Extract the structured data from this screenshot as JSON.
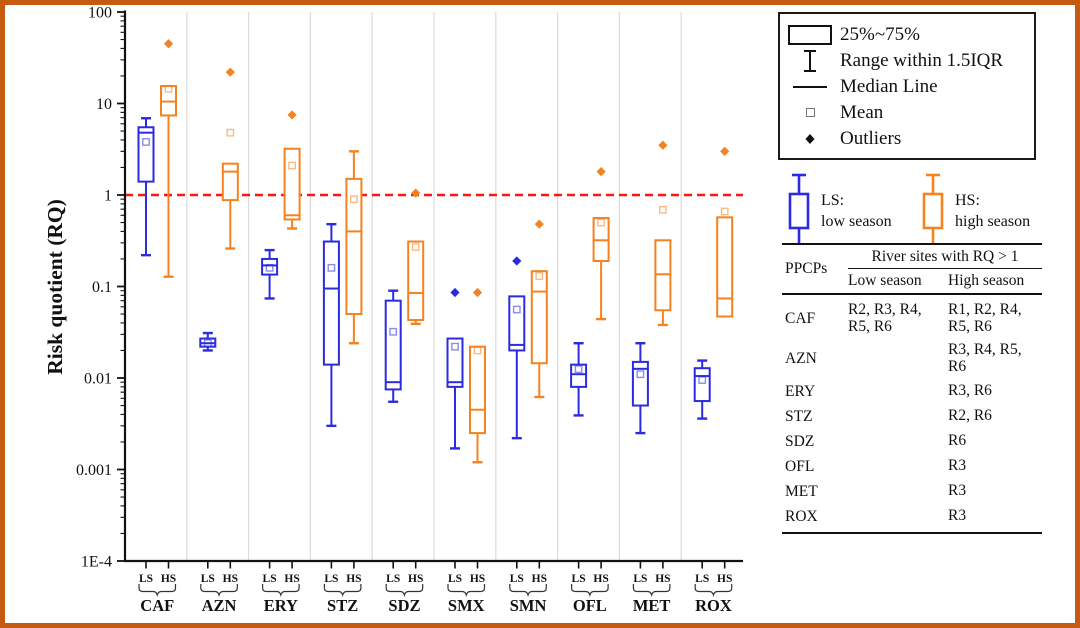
{
  "frame": {
    "border_color": "#C55A11"
  },
  "chart_data": {
    "type": "boxplot",
    "title": "",
    "ylabel": "Risk quotient (RQ)",
    "xlabel": "",
    "yscale": "log",
    "ylim": [
      0.0001,
      100
    ],
    "grid": "vertical-group-separators",
    "yticks": [
      {
        "v": 100,
        "label": "100"
      },
      {
        "v": 10,
        "label": "10"
      },
      {
        "v": 1,
        "label": "1"
      },
      {
        "v": 0.1,
        "label": "0.1"
      },
      {
        "v": 0.01,
        "label": "0.01"
      },
      {
        "v": 0.001,
        "label": "0.001"
      },
      {
        "v": 0.0001,
        "label": "1E-4"
      }
    ],
    "reference_line": {
      "value": 1,
      "color": "#FF1414",
      "style": "dashed"
    },
    "categories": [
      "CAF",
      "AZN",
      "ERY",
      "STZ",
      "SDZ",
      "SMX",
      "SMN",
      "OFL",
      "MET",
      "ROX"
    ],
    "series": [
      {
        "name": "LS",
        "label": "low season",
        "color": "#2B2BDF",
        "boxes": [
          {
            "whisker_low": 0.22,
            "q1": 1.4,
            "median": 4.8,
            "q3": 5.5,
            "whisker_high": 6.9,
            "mean": 3.8,
            "outliers": []
          },
          {
            "whisker_low": 0.02,
            "q1": 0.022,
            "median": 0.024,
            "q3": 0.027,
            "whisker_high": 0.031,
            "mean": 0.024,
            "outliers": []
          },
          {
            "whisker_low": 0.074,
            "q1": 0.135,
            "median": 0.17,
            "q3": 0.2,
            "whisker_high": 0.25,
            "mean": 0.16,
            "outliers": []
          },
          {
            "whisker_low": 0.003,
            "q1": 0.014,
            "median": 0.095,
            "q3": 0.31,
            "whisker_high": 0.48,
            "mean": 0.16,
            "outliers": []
          },
          {
            "whisker_low": 0.0055,
            "q1": 0.0075,
            "median": 0.009,
            "q3": 0.07,
            "whisker_high": 0.09,
            "mean": 0.032,
            "outliers": []
          },
          {
            "whisker_low": 0.0017,
            "q1": 0.008,
            "median": 0.009,
            "q3": 0.027,
            "whisker_high": 0.027,
            "mean": 0.022,
            "outliers": [
              0.086
            ]
          },
          {
            "whisker_low": 0.0022,
            "q1": 0.02,
            "median": 0.023,
            "q3": 0.078,
            "whisker_high": 0.078,
            "mean": 0.056,
            "outliers": [
              0.19
            ]
          },
          {
            "whisker_low": 0.0039,
            "q1": 0.008,
            "median": 0.011,
            "q3": 0.014,
            "whisker_high": 0.024,
            "mean": 0.0125,
            "outliers": []
          },
          {
            "whisker_low": 0.0025,
            "q1": 0.005,
            "median": 0.0126,
            "q3": 0.015,
            "whisker_high": 0.024,
            "mean": 0.011,
            "outliers": []
          },
          {
            "whisker_low": 0.0036,
            "q1": 0.0056,
            "median": 0.0105,
            "q3": 0.0128,
            "whisker_high": 0.0155,
            "mean": 0.0095,
            "outliers": []
          }
        ]
      },
      {
        "name": "HS",
        "label": "high season",
        "color": "#F5821E",
        "boxes": [
          {
            "whisker_low": 0.128,
            "q1": 7.4,
            "median": 10.5,
            "q3": 15.5,
            "whisker_high": 15.5,
            "mean": 14.5,
            "outliers": [
              45
            ]
          },
          {
            "whisker_low": 0.26,
            "q1": 0.88,
            "median": 1.8,
            "q3": 2.2,
            "whisker_high": 2.2,
            "mean": 4.8,
            "outliers": [
              22
            ]
          },
          {
            "whisker_low": 0.43,
            "q1": 0.54,
            "median": 0.6,
            "q3": 3.2,
            "whisker_high": 3.2,
            "mean": 2.1,
            "outliers": [
              7.5
            ]
          },
          {
            "whisker_low": 0.024,
            "q1": 0.05,
            "median": 0.4,
            "q3": 1.5,
            "whisker_high": 3.0,
            "mean": 0.9,
            "outliers": []
          },
          {
            "whisker_low": 0.039,
            "q1": 0.043,
            "median": 0.085,
            "q3": 0.31,
            "whisker_high": 0.31,
            "mean": 0.27,
            "outliers": [
              1.05
            ]
          },
          {
            "whisker_low": 0.0012,
            "q1": 0.0025,
            "median": 0.0045,
            "q3": 0.022,
            "whisker_high": 0.022,
            "mean": 0.02,
            "outliers": [
              0.086
            ]
          },
          {
            "whisker_low": 0.0062,
            "q1": 0.0145,
            "median": 0.088,
            "q3": 0.147,
            "whisker_high": 0.147,
            "mean": 0.13,
            "outliers": [
              0.48
            ]
          },
          {
            "whisker_low": 0.044,
            "q1": 0.19,
            "median": 0.32,
            "q3": 0.56,
            "whisker_high": 0.56,
            "mean": 0.5,
            "outliers": [
              1.8
            ]
          },
          {
            "whisker_low": 0.038,
            "q1": 0.055,
            "median": 0.136,
            "q3": 0.32,
            "whisker_high": 0.32,
            "mean": 0.69,
            "outliers": [
              3.5
            ]
          },
          {
            "whisker_low": 0.047,
            "q1": 0.047,
            "median": 0.074,
            "q3": 0.57,
            "whisker_high": 0.57,
            "mean": 0.66,
            "outliers": [
              3.0
            ]
          }
        ]
      }
    ]
  },
  "legend": {
    "items": [
      {
        "icon": "box-icon",
        "label": "25%~75%"
      },
      {
        "icon": "whisker-icon",
        "label": "Range within 1.5IQR"
      },
      {
        "icon": "median-line-icon",
        "label": "Median Line"
      },
      {
        "icon": "mean-square-icon",
        "label": "Mean"
      },
      {
        "icon": "outlier-diamond-icon",
        "label": "Outliers"
      }
    ]
  },
  "season_legend": {
    "ls": {
      "abbr": "LS:",
      "label": "low  season",
      "color": "#2B2BDF"
    },
    "hs": {
      "abbr": "HS:",
      "label": "high  season",
      "color": "#F5821E"
    }
  },
  "table": {
    "col1_header": "PPCPs",
    "span_header": "River sites with RQ > 1",
    "low_header": "Low season",
    "high_header": "High season",
    "rows": [
      {
        "name": "CAF",
        "low": "R2, R3, R4, R5, R6",
        "high": "R1, R2, R4, R5, R6"
      },
      {
        "name": "AZN",
        "low": "",
        "high": "R3, R4, R5, R6"
      },
      {
        "name": "ERY",
        "low": "",
        "high": "R3, R6"
      },
      {
        "name": "STZ",
        "low": "",
        "high": "R2, R6"
      },
      {
        "name": "SDZ",
        "low": "",
        "high": "R6"
      },
      {
        "name": "OFL",
        "low": "",
        "high": "R3"
      },
      {
        "name": "MET",
        "low": "",
        "high": "R3"
      },
      {
        "name": "ROX",
        "low": "",
        "high": "R3"
      }
    ]
  }
}
